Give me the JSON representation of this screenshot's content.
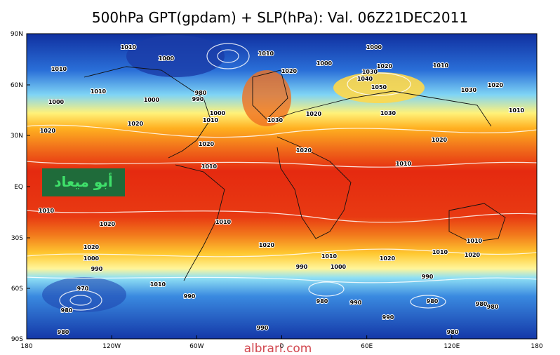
{
  "header": {
    "title": "500hPa GPT(gpdam) + SLP(hPa): Val. 06Z21DEC2011"
  },
  "axes": {
    "lat": [
      "90N",
      "60N",
      "30N",
      "EQ",
      "30S",
      "60S",
      "90S"
    ],
    "lon": [
      "180",
      "120W",
      "60W",
      "0",
      "60E",
      "120E",
      "180"
    ]
  },
  "contour_labels": [
    "1010",
    "1000",
    "1010",
    "1000",
    "1010",
    "1020",
    "1000",
    "1030",
    "1020",
    "1010",
    "1040",
    "1050",
    "1010",
    "1000",
    "1000",
    "980",
    "990",
    "1030",
    "1020",
    "1000",
    "1010",
    "1030",
    "1020",
    "1030",
    "1010",
    "1020",
    "1020",
    "1020",
    "1020",
    "1020",
    "1010",
    "1010",
    "1010",
    "1020",
    "1010",
    "1020",
    "1020",
    "1000",
    "990",
    "1010",
    "1000",
    "1020",
    "1010",
    "1010",
    "1020",
    "990",
    "1010",
    "970",
    "990",
    "990",
    "980",
    "980",
    "990",
    "980",
    "980",
    "980",
    "990",
    "990",
    "980",
    "980"
  ],
  "watermark": "أبو ميعاد",
  "footer": "albrari.com"
}
